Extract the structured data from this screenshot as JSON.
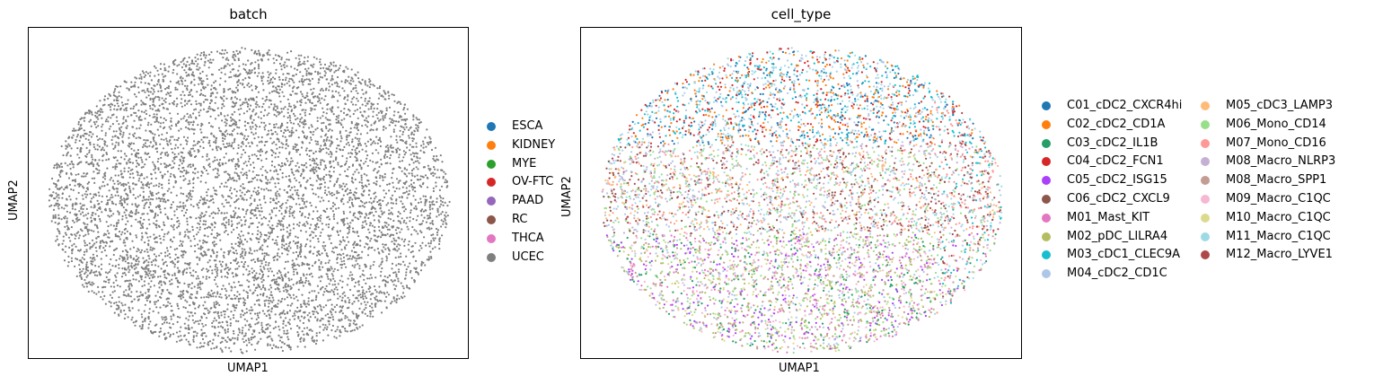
{
  "chart_data": [
    {
      "type": "scatter",
      "title": "batch",
      "xlabel": "UMAP1",
      "ylabel": "UMAP2",
      "grid": false,
      "legend_placement": "right",
      "point_color_default": "#7f7f7f",
      "legend": [
        {
          "label": "ESCA",
          "color": "#1f77b4"
        },
        {
          "label": "KIDNEY",
          "color": "#ff7f0e"
        },
        {
          "label": "MYE",
          "color": "#2ca02c"
        },
        {
          "label": "OV-FTC",
          "color": "#d62728"
        },
        {
          "label": "PAAD",
          "color": "#9467bd"
        },
        {
          "label": "RC",
          "color": "#8c564b"
        },
        {
          "label": "THCA",
          "color": "#e377c2"
        },
        {
          "label": "UCEC",
          "color": "#7f7f7f"
        }
      ],
      "series_counts_visible": {
        "UCEC": "all"
      }
    },
    {
      "type": "scatter",
      "title": "cell_type",
      "xlabel": "UMAP1",
      "ylabel": "UMAP2",
      "grid": false,
      "legend_placement": "right",
      "legend": [
        {
          "label": "C01_cDC2_CXCR4hi",
          "color": "#1f77b4"
        },
        {
          "label": "C02_cDC2_CD1A",
          "color": "#ff7f0e"
        },
        {
          "label": "C03_cDC2_IL1B",
          "color": "#279e68"
        },
        {
          "label": "C04_cDC2_FCN1",
          "color": "#d62728"
        },
        {
          "label": "C05_cDC2_ISG15",
          "color": "#aa40fc"
        },
        {
          "label": "C06_cDC2_CXCL9",
          "color": "#8c564b"
        },
        {
          "label": "M01_Mast_KIT",
          "color": "#e377c2"
        },
        {
          "label": "M02_pDC_LILRA4",
          "color": "#b5bd61"
        },
        {
          "label": "M03_cDC1_CLEC9A",
          "color": "#17becf"
        },
        {
          "label": "M04_cDC2_CD1C",
          "color": "#aec7e8"
        },
        {
          "label": "M05_cDC3_LAMP3",
          "color": "#ffbb78"
        },
        {
          "label": "M06_Mono_CD14",
          "color": "#98df8a"
        },
        {
          "label": "M07_Mono_CD16",
          "color": "#ff9896"
        },
        {
          "label": "M08_Macro_NLRP3",
          "color": "#c5b0d5"
        },
        {
          "label": "M08_Macro_SPP1",
          "color": "#c49c94"
        },
        {
          "label": "M09_Macro_C1QC",
          "color": "#f7b6d2"
        },
        {
          "label": "M10_Macro_C1QC",
          "color": "#dbdb8d"
        },
        {
          "label": "M11_Macro_C1QC",
          "color": "#9edae5"
        },
        {
          "label": "M12_Macro_LYVE1",
          "color": "#ad494a"
        }
      ]
    }
  ]
}
